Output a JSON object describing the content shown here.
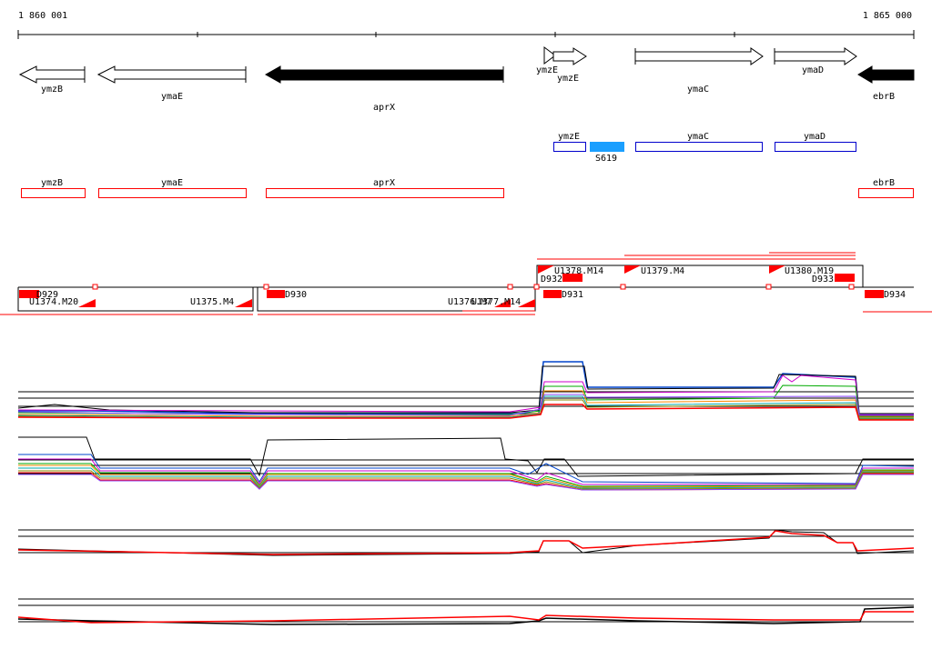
{
  "coords": {
    "start": "1 860 001",
    "end": "1 865 000"
  },
  "colors": {
    "red": "#ff0000",
    "blue": "#0000cc",
    "srna": "#1a9fff",
    "black": "#000000"
  },
  "genes": [
    {
      "id": "ymzB",
      "label": "ymzB",
      "strand": "-",
      "filled": false
    },
    {
      "id": "ymaE",
      "label": "ymaE",
      "strand": "-",
      "filled": false
    },
    {
      "id": "aprX",
      "label": "aprX",
      "strand": "-",
      "filled": true
    },
    {
      "id": "ymzE",
      "label": "ymzE",
      "strand": "+",
      "filled": false
    },
    {
      "id": "ymaC",
      "label": "ymaC",
      "strand": "+",
      "filled": false
    },
    {
      "id": "ymaD",
      "label": "ymaD",
      "strand": "+",
      "filled": false
    },
    {
      "id": "ebrB",
      "label": "ebrB",
      "strand": "-",
      "filled": true
    }
  ],
  "blue_features": [
    {
      "label": "ymzE"
    },
    {
      "label": "S619",
      "filled": true
    },
    {
      "label": "ymaC"
    },
    {
      "label": "ymaD"
    }
  ],
  "red_features": [
    {
      "label": "ymzB"
    },
    {
      "label": "ymaE"
    },
    {
      "label": "aprX"
    },
    {
      "label": "ebrB"
    }
  ],
  "transcripts": {
    "upstream": [
      "U1374.M20",
      "U1375.M4",
      "U1376.M7",
      "U1377.M14",
      "U1378.M14",
      "U1379.M4",
      "U1380.M19"
    ],
    "downstream": [
      "D929",
      "D930",
      "D931",
      "D932",
      "D933",
      "D934"
    ]
  }
}
